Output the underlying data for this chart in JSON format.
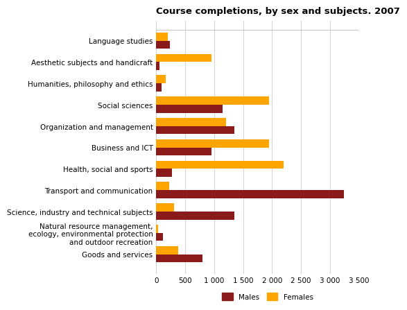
{
  "title": "Course completions, by sex and subjects. 2007",
  "categories": [
    "Language studies",
    "Aesthetic subjects and handicraft",
    "Humanities, philosophy and ethics",
    "Social sciences",
    "Organization and management",
    "Business and ICT",
    "Health, social and sports",
    "Transport and communication",
    "Science, industry and technical subjects",
    "Natural resource management,\necology, environmental protection\nand outdoor recreation",
    "Goods and services"
  ],
  "males": [
    230,
    50,
    90,
    1150,
    1350,
    950,
    270,
    3250,
    1350,
    110,
    800
  ],
  "females": [
    200,
    950,
    160,
    1950,
    1200,
    1950,
    2200,
    220,
    310,
    30,
    380
  ],
  "male_color": "#8B1A1A",
  "female_color": "#FFA500",
  "xlim": [
    0,
    3500
  ],
  "xticks": [
    0,
    500,
    1000,
    1500,
    2000,
    2500,
    3000,
    3500
  ],
  "xtick_labels": [
    "0",
    "500",
    "1 000",
    "1 500",
    "2 000",
    "2 500",
    "3 000",
    "3 500"
  ],
  "bar_height": 0.38,
  "legend_labels": [
    "Males",
    "Females"
  ],
  "background_color": "#ffffff",
  "plot_bg_color": "#ffffff",
  "grid_color": "#cccccc",
  "title_fontsize": 9.5,
  "tick_fontsize": 7.5,
  "label_fontsize": 7.5
}
